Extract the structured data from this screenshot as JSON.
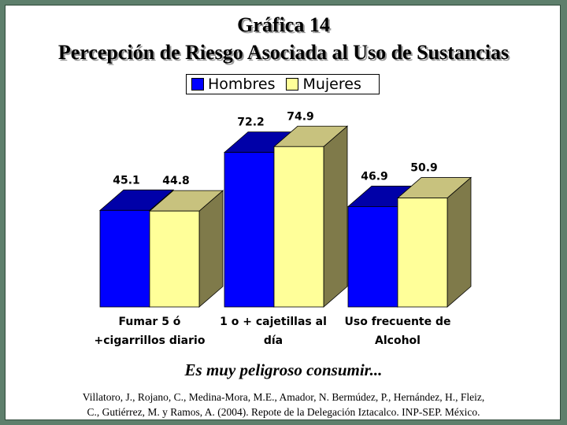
{
  "chart_data": {
    "type": "bar",
    "style": "3d",
    "title": "Gráfica 14",
    "subtitle": "Percepción de Riesgo Asociada al Uso de Sustancias",
    "categories": [
      [
        "Fumar 5 ó",
        "+cigarrillos diario"
      ],
      [
        "1 o + cajetillas al",
        "día"
      ],
      [
        "Uso frecuente de",
        "Alcohol"
      ]
    ],
    "series": [
      {
        "name": "Hombres",
        "values": [
          45.1,
          72.2,
          46.9
        ],
        "color": "#0000ff"
      },
      {
        "name": "Mujeres",
        "values": [
          44.8,
          74.9,
          50.9
        ],
        "color": "#ffff99"
      }
    ],
    "value_labels": [
      [
        "45.1",
        "72.2",
        "46.9"
      ],
      [
        "44.8",
        "74.9",
        "50.9"
      ]
    ],
    "ylim": [
      0,
      100
    ],
    "grid": false,
    "legend_position": "top-center"
  },
  "caption": "Es muy peligroso consumir...",
  "citation": [
    "Villatoro, J., Rojano, C., Medina-Mora, M.E., Amador, N. Bermúdez, P., Hernández, H., Fleiz,",
    "C., Gutiérrez, M. y Ramos, A. (2004). Repote de la Delegación Iztacalco. INP-SEP. México."
  ]
}
